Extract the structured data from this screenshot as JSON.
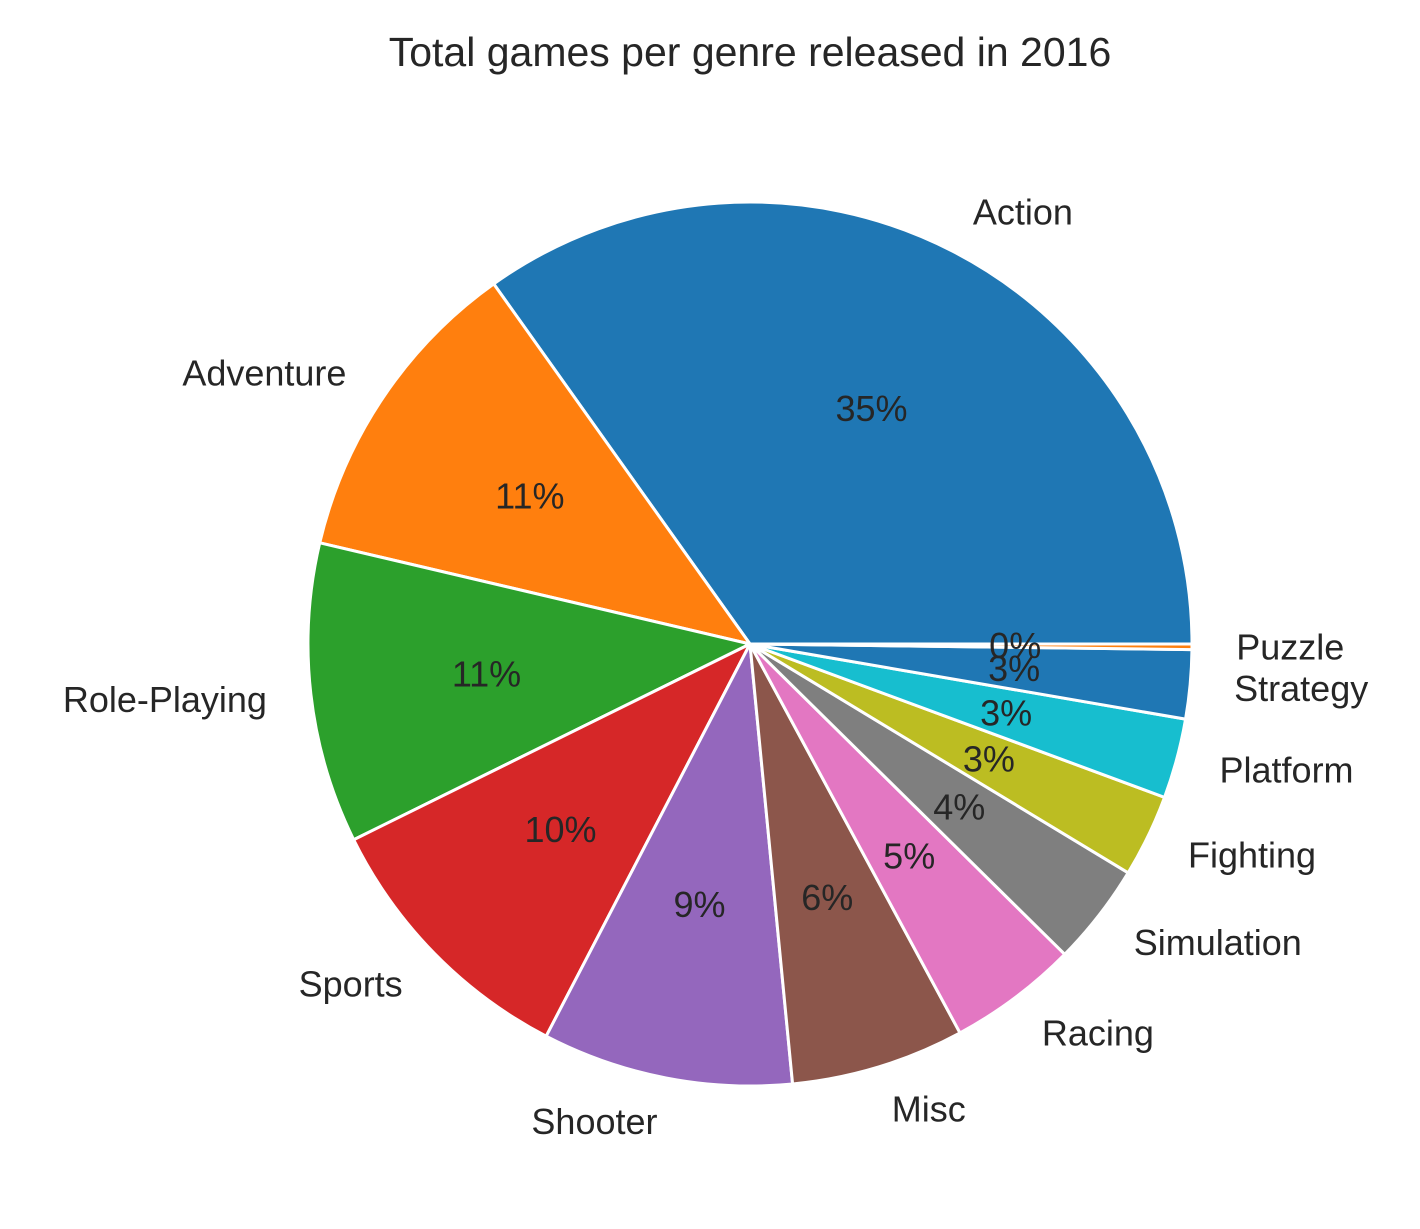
{
  "chart_data": {
    "type": "pie",
    "title": "Total games per genre released in 2016",
    "start_angle_deg": 0,
    "direction": "counterclockwise",
    "slices": [
      {
        "label": "Action",
        "value": 34.6,
        "pct_label": "35%",
        "color": "#1f77b4"
      },
      {
        "label": "Adventure",
        "value": 11.4,
        "pct_label": "11%",
        "color": "#ff7f0e"
      },
      {
        "label": "Role-Playing",
        "value": 10.9,
        "pct_label": "11%",
        "color": "#2ca02c"
      },
      {
        "label": "Sports",
        "value": 10.0,
        "pct_label": "10%",
        "color": "#d62728"
      },
      {
        "label": "Shooter",
        "value": 9.1,
        "pct_label": "9%",
        "color": "#9467bd"
      },
      {
        "label": "Misc",
        "value": 6.3,
        "pct_label": "6%",
        "color": "#8c564b"
      },
      {
        "label": "Racing",
        "value": 4.7,
        "pct_label": "5%",
        "color": "#e377c2"
      },
      {
        "label": "Simulation",
        "value": 3.7,
        "pct_label": "4%",
        "color": "#7f7f7f"
      },
      {
        "label": "Fighting",
        "value": 3.0,
        "pct_label": "3%",
        "color": "#bcbd22"
      },
      {
        "label": "Platform",
        "value": 2.9,
        "pct_label": "3%",
        "color": "#17becf"
      },
      {
        "label": "Strategy",
        "value": 2.5,
        "pct_label": "3%",
        "color": "#1f77b4"
      },
      {
        "label": "Puzzle",
        "value": 0.2,
        "pct_label": "0%",
        "color": "#ff7f0e"
      }
    ]
  }
}
